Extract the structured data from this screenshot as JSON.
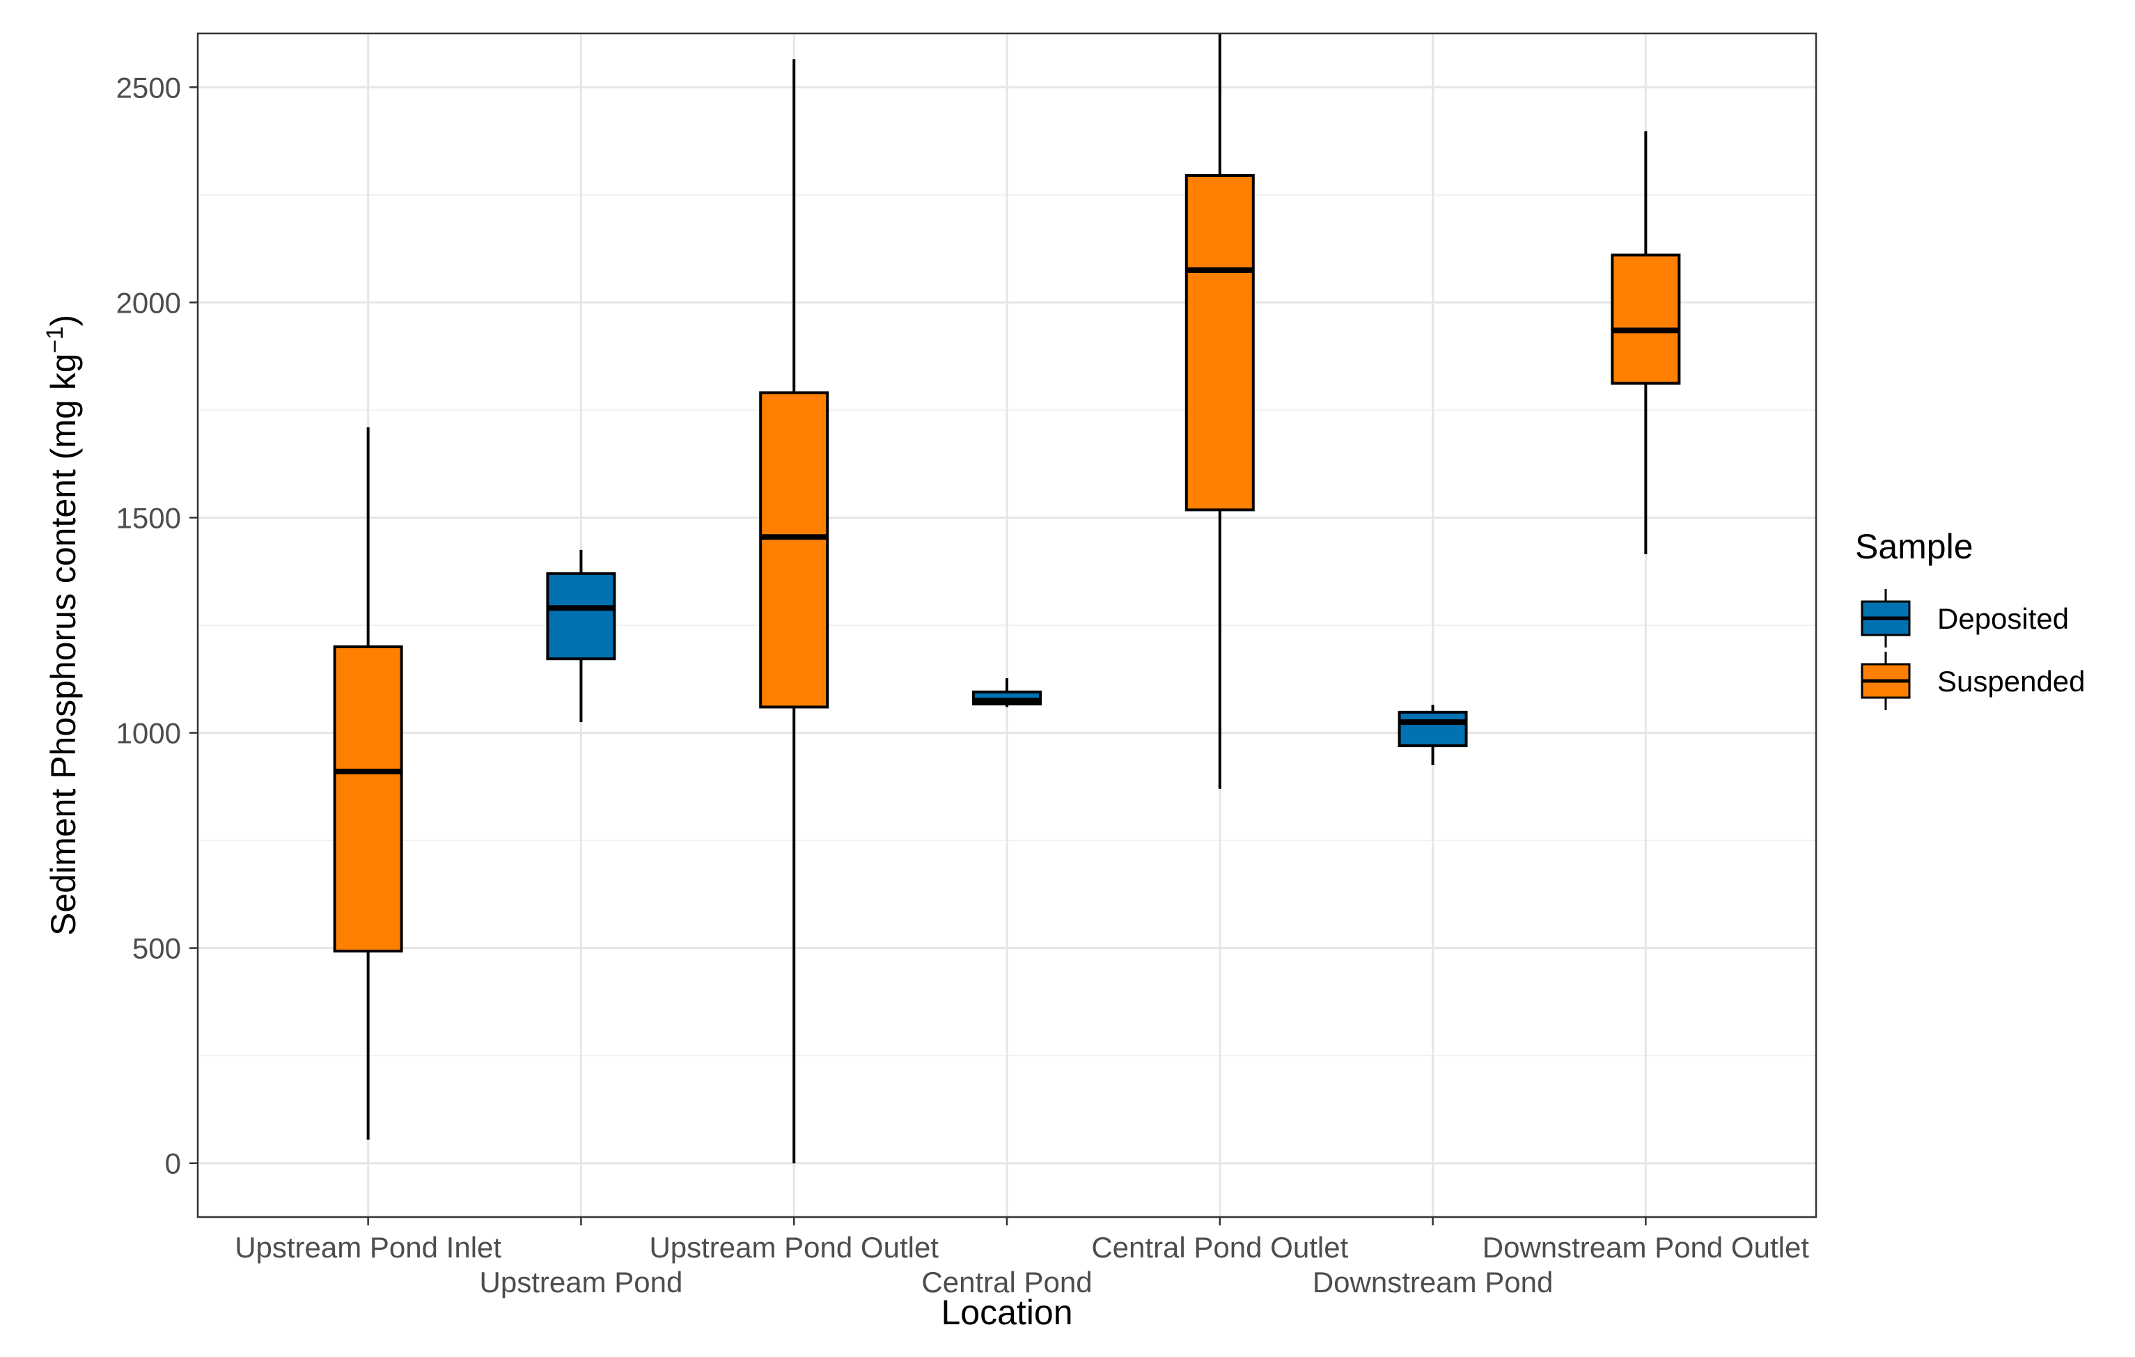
{
  "chart_data": {
    "type": "box",
    "xlabel": "Location",
    "ylabel": "Sediment Phosphorus content (mg kg",
    "ylabel_sup": "−1",
    "ylabel_close": ")",
    "ylim": [
      -125,
      2625
    ],
    "yticks": [
      0,
      500,
      1000,
      1500,
      2000,
      2500
    ],
    "yticks_minor": [
      250,
      750,
      1250,
      1750,
      2250
    ],
    "grid": true,
    "legend": {
      "title": "Sample",
      "position": "right",
      "entries": [
        {
          "name": "Deposited",
          "color": "#0072b2"
        },
        {
          "name": "Suspended",
          "color": "#ff7f00"
        }
      ]
    },
    "categories": [
      "Upstream Pond Inlet",
      "Upstream Pond",
      "Upstream Pond Outlet",
      "Central Pond",
      "Central Pond Outlet",
      "Downstream Pond",
      "Downstream Pond Outlet"
    ],
    "boxes": [
      {
        "category": "Upstream Pond Inlet",
        "sample": "Suspended",
        "min": 55,
        "q1": 493,
        "median": 910,
        "q3": 1200,
        "max": 1710
      },
      {
        "category": "Upstream Pond",
        "sample": "Deposited",
        "min": 1025,
        "q1": 1172,
        "median": 1290,
        "q3": 1370,
        "max": 1425
      },
      {
        "category": "Upstream Pond Outlet",
        "sample": "Suspended",
        "min": 0,
        "q1": 1060,
        "median": 1455,
        "q3": 1790,
        "max": 2565
      },
      {
        "category": "Central Pond",
        "sample": "Deposited",
        "min": 1060,
        "q1": 1067,
        "median": 1075,
        "q3": 1095,
        "max": 1127
      },
      {
        "category": "Central Pond Outlet",
        "sample": "Suspended",
        "min": 870,
        "q1": 1518,
        "median": 2075,
        "q3": 2295,
        "max": 2625
      },
      {
        "category": "Downstream Pond",
        "sample": "Deposited",
        "min": 925,
        "q1": 970,
        "median": 1025,
        "q3": 1048,
        "max": 1065
      },
      {
        "category": "Downstream Pond Outlet",
        "sample": "Suspended",
        "min": 1415,
        "q1": 1812,
        "median": 1935,
        "q3": 2110,
        "max": 2398
      }
    ]
  }
}
